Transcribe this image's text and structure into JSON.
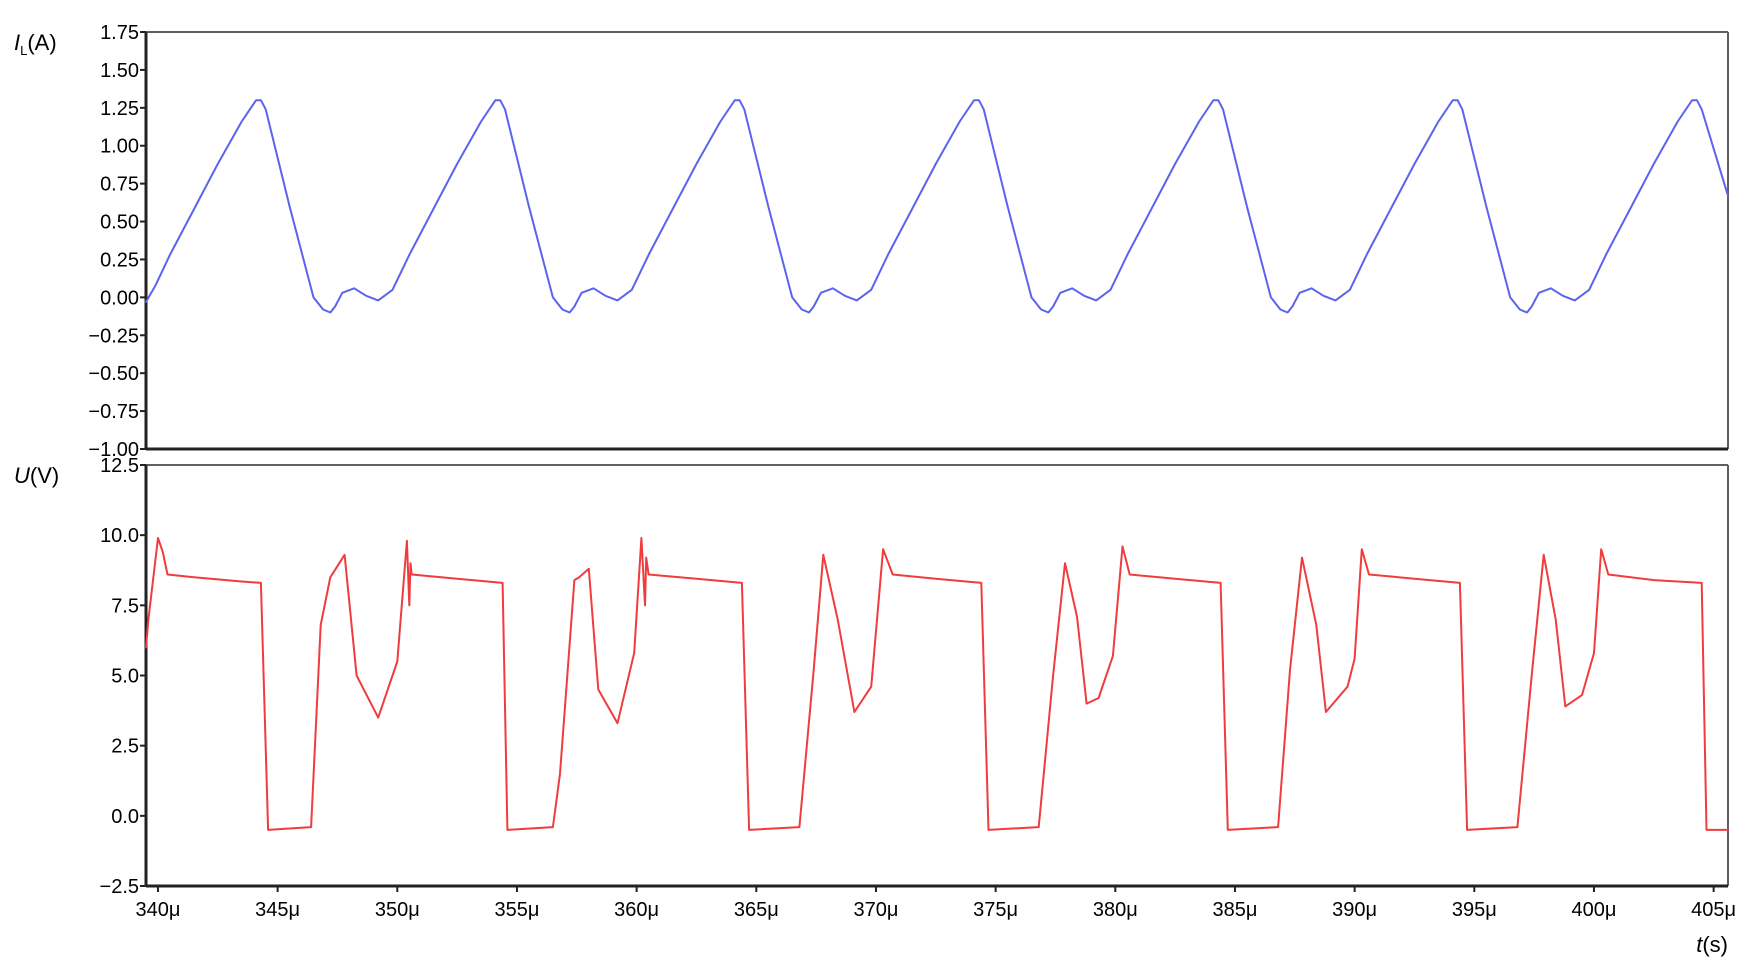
{
  "chart_data": [
    {
      "type": "line",
      "ylabel_symbol": "I",
      "ylabel_sub": "L",
      "ylabel_unit": "(A)",
      "xlim": [
        339.5,
        405.6
      ],
      "ylim": [
        -1.0,
        1.75
      ],
      "y_ticks": [
        1.75,
        1.5,
        1.25,
        1.0,
        0.75,
        0.5,
        0.25,
        0.0,
        -0.25,
        -0.5,
        -0.75,
        -1.0
      ],
      "y_tick_labels": [
        "1.75",
        "1.50",
        "1.25",
        "1.00",
        "0.75",
        "0.50",
        "0.25",
        "0.00",
        "−0.25",
        "−0.50",
        "−0.75",
        "−1.00"
      ],
      "grid": false,
      "series": [
        {
          "color": "#5b63ef",
          "x": [
            339.5,
            339.9,
            340.5,
            341.5,
            342.5,
            343.5,
            344.1,
            344.3,
            344.5,
            345.5,
            346.5,
            346.9,
            347.2,
            347.4,
            347.7,
            348.2,
            348.7,
            349.2,
            349.8,
            350.5,
            351.5,
            352.5,
            353.5,
            354.1,
            354.3,
            354.5,
            355.5,
            356.5,
            356.9,
            357.2,
            357.4,
            357.7,
            358.2,
            358.7,
            359.2,
            359.8,
            360.5,
            361.5,
            362.5,
            363.5,
            364.1,
            364.3,
            364.5,
            365.5,
            366.5,
            366.9,
            367.2,
            367.4,
            367.7,
            368.2,
            368.7,
            369.2,
            369.8,
            370.5,
            371.5,
            372.5,
            373.5,
            374.1,
            374.3,
            374.5,
            375.5,
            376.5,
            376.9,
            377.2,
            377.4,
            377.7,
            378.2,
            378.7,
            379.2,
            379.8,
            380.5,
            381.5,
            382.5,
            383.5,
            384.1,
            384.3,
            384.5,
            385.5,
            386.5,
            386.9,
            387.2,
            387.4,
            387.7,
            388.2,
            388.7,
            389.2,
            389.8,
            390.5,
            391.5,
            392.5,
            393.5,
            394.1,
            394.3,
            394.5,
            395.5,
            396.5,
            396.9,
            397.2,
            397.4,
            397.7,
            398.2,
            398.7,
            399.2,
            399.8,
            400.5,
            401.5,
            402.5,
            403.5,
            404.1,
            404.3,
            404.5,
            405.6
          ],
          "y": [
            -0.03,
            0.08,
            0.28,
            0.58,
            0.88,
            1.16,
            1.3,
            1.3,
            1.24,
            0.6,
            0.0,
            -0.08,
            -0.1,
            -0.06,
            0.03,
            0.06,
            0.01,
            -0.02,
            0.05,
            0.28,
            0.58,
            0.88,
            1.16,
            1.3,
            1.3,
            1.24,
            0.6,
            0.0,
            -0.08,
            -0.1,
            -0.06,
            0.03,
            0.06,
            0.01,
            -0.02,
            0.05,
            0.28,
            0.58,
            0.88,
            1.16,
            1.3,
            1.3,
            1.24,
            0.6,
            0.0,
            -0.08,
            -0.1,
            -0.06,
            0.03,
            0.06,
            0.01,
            -0.02,
            0.05,
            0.28,
            0.58,
            0.88,
            1.16,
            1.3,
            1.3,
            1.24,
            0.6,
            0.0,
            -0.08,
            -0.1,
            -0.06,
            0.03,
            0.06,
            0.01,
            -0.02,
            0.05,
            0.28,
            0.58,
            0.88,
            1.16,
            1.3,
            1.3,
            1.24,
            0.6,
            0.0,
            -0.08,
            -0.1,
            -0.06,
            0.03,
            0.06,
            0.01,
            -0.02,
            0.05,
            0.28,
            0.58,
            0.88,
            1.16,
            1.3,
            1.3,
            1.24,
            0.6,
            0.0,
            -0.08,
            -0.1,
            -0.06,
            0.03,
            0.06,
            0.01,
            -0.02,
            0.05,
            0.28,
            0.58,
            0.88,
            1.16,
            1.3,
            1.3,
            1.24,
            0.67
          ]
        }
      ]
    },
    {
      "type": "line",
      "ylabel_symbol": "U",
      "ylabel_unit": "(V)",
      "xlabel_symbol": "t",
      "xlabel_unit": "(s)",
      "xlim": [
        339.5,
        405.6
      ],
      "ylim": [
        -2.5,
        12.5
      ],
      "y_ticks": [
        12.5,
        10.0,
        7.5,
        5.0,
        2.5,
        0.0,
        -2.5
      ],
      "y_tick_labels": [
        "12.5",
        "10.0",
        "7.5",
        "5.0",
        "2.5",
        "0.0",
        "−2.5"
      ],
      "x_ticks": [
        340,
        345,
        350,
        355,
        360,
        365,
        370,
        375,
        380,
        385,
        390,
        395,
        400,
        405
      ],
      "x_tick_labels": [
        "340μ",
        "345μ",
        "350μ",
        "355μ",
        "360μ",
        "365μ",
        "370μ",
        "375μ",
        "380μ",
        "385μ",
        "390μ",
        "395μ",
        "400μ",
        "405μ"
      ],
      "grid": false,
      "series": [
        {
          "color": "#f03c3c",
          "x": [
            339.5,
            339.6,
            340.0,
            340.2,
            340.4,
            341.5,
            343.5,
            344.3,
            344.6,
            346.4,
            346.8,
            347.2,
            347.8,
            348.3,
            349.2,
            350.0,
            350.4,
            350.5,
            350.55,
            350.6,
            352.5,
            354.4,
            354.6,
            356.5,
            356.8,
            357.4,
            357.6,
            358.0,
            358.4,
            359.2,
            359.9,
            360.2,
            360.35,
            360.4,
            360.5,
            362.5,
            364.4,
            364.7,
            366.8,
            367.4,
            367.8,
            368.4,
            369.1,
            369.8,
            370.3,
            370.7,
            372.5,
            374.4,
            374.7,
            376.8,
            377.4,
            377.9,
            378.4,
            378.8,
            379.3,
            379.9,
            380.3,
            380.6,
            382.5,
            384.4,
            384.7,
            386.8,
            387.3,
            387.8,
            388.4,
            388.8,
            389.7,
            390.0,
            390.3,
            390.6,
            392.5,
            394.4,
            394.7,
            396.8,
            397.4,
            397.9,
            398.4,
            398.8,
            399.5,
            400.0,
            400.3,
            400.6,
            402.5,
            404.5,
            404.7,
            405.6
          ],
          "y": [
            6.0,
            7.0,
            9.9,
            9.4,
            8.6,
            8.5,
            8.35,
            8.3,
            -0.5,
            -0.4,
            6.8,
            8.5,
            9.3,
            5.0,
            3.5,
            5.5,
            9.8,
            7.5,
            9.0,
            8.6,
            8.45,
            8.3,
            -0.5,
            -0.4,
            1.5,
            8.4,
            8.5,
            8.8,
            4.5,
            3.3,
            5.8,
            9.9,
            7.5,
            9.2,
            8.6,
            8.45,
            8.3,
            -0.5,
            -0.4,
            5.2,
            9.3,
            7.0,
            3.7,
            4.6,
            9.5,
            8.6,
            8.45,
            8.3,
            -0.5,
            -0.4,
            5.0,
            9.0,
            7.1,
            4.0,
            4.2,
            5.7,
            9.6,
            8.6,
            8.45,
            8.3,
            -0.5,
            -0.4,
            5.2,
            9.2,
            6.8,
            3.7,
            4.6,
            5.6,
            9.5,
            8.6,
            8.45,
            8.3,
            -0.5,
            -0.4,
            5.0,
            9.3,
            7.0,
            3.9,
            4.3,
            5.8,
            9.5,
            8.6,
            8.4,
            8.3,
            -0.5,
            -0.5
          ]
        }
      ]
    }
  ]
}
